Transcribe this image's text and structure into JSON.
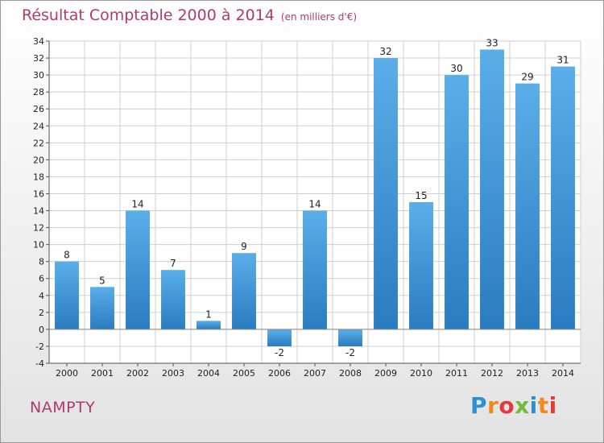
{
  "header": {
    "title": "Résultat Comptable 2000 à 2014",
    "unit": "(en milliers d'€)"
  },
  "footer": {
    "commune": "NAMPTY",
    "brand": "Proxiti"
  },
  "colors": {
    "bar": "#3d95d8",
    "bar_dark": "#2a7cc0",
    "title": "#b03a6e",
    "grid": "#cfcfcf"
  },
  "chart_data": {
    "type": "bar",
    "title": "Résultat Comptable 2000 à 2014",
    "xlabel": "",
    "ylabel": "",
    "categories": [
      "2000",
      "2001",
      "2002",
      "2003",
      "2004",
      "2005",
      "2006",
      "2007",
      "2008",
      "2009",
      "2010",
      "2011",
      "2012",
      "2013",
      "2014"
    ],
    "values": [
      8,
      5,
      14,
      7,
      1,
      9,
      -2,
      14,
      -2,
      32,
      15,
      30,
      33,
      29,
      31
    ],
    "ylim": [
      -4,
      34
    ],
    "ytick_step": 2,
    "grid": true,
    "legend": "none"
  }
}
